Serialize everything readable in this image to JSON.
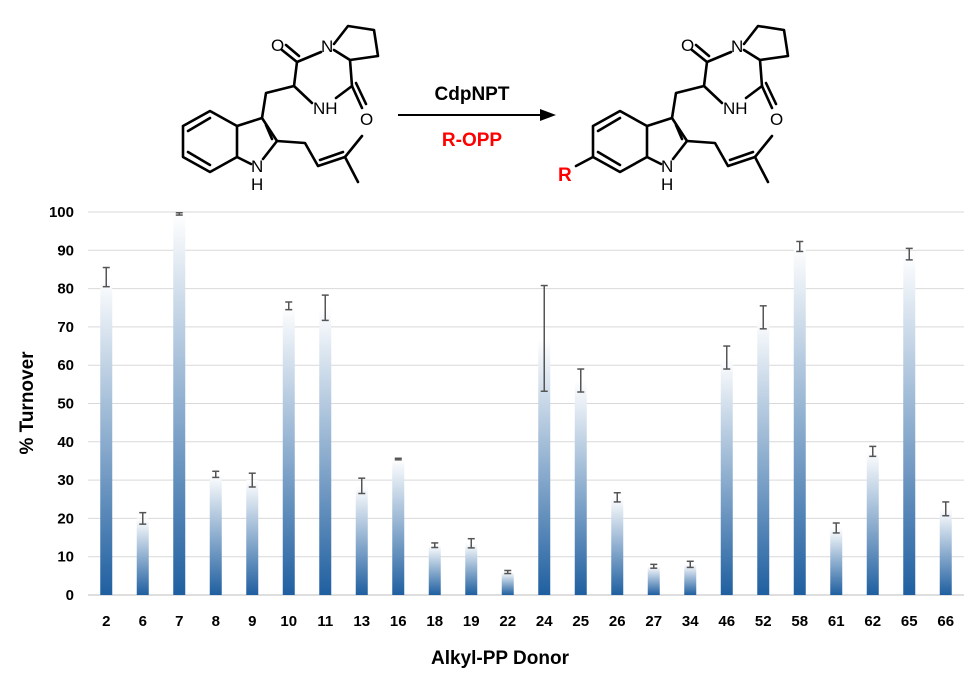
{
  "scheme": {
    "enzyme": "CdpNPT",
    "donor": "R-OPP",
    "r_group": "R",
    "accent_color": "#ff0000"
  },
  "chart_data": {
    "type": "bar",
    "xlabel": "Alkyl-PP Donor",
    "ylabel": "% Turnover",
    "ylim": [
      0,
      100
    ],
    "yticks": [
      0,
      10,
      20,
      30,
      40,
      50,
      60,
      70,
      80,
      90,
      100
    ],
    "grid": true,
    "categories": [
      "2",
      "6",
      "7",
      "8",
      "9",
      "10",
      "11",
      "13",
      "16",
      "18",
      "19",
      "22",
      "24",
      "25",
      "26",
      "27",
      "34",
      "46",
      "52",
      "58",
      "61",
      "62",
      "65",
      "66"
    ],
    "values": [
      83,
      20,
      99.5,
      31.5,
      30,
      75.5,
      75,
      28.5,
      35.5,
      13,
      13.5,
      6,
      67,
      56,
      25.5,
      7.5,
      8,
      62,
      72.5,
      91,
      17.5,
      37.5,
      89,
      22.5
    ],
    "errors": [
      2.5,
      1.5,
      0.3,
      0.8,
      1.8,
      1,
      3.3,
      2,
      0.2,
      0.6,
      1.2,
      0.4,
      13.8,
      3,
      1.2,
      0.5,
      0.8,
      3,
      3,
      1.3,
      1.3,
      1.3,
      1.5,
      1.8
    ],
    "bar_color_top": "#ffffff",
    "bar_color_bottom": "#1f5fa0"
  }
}
